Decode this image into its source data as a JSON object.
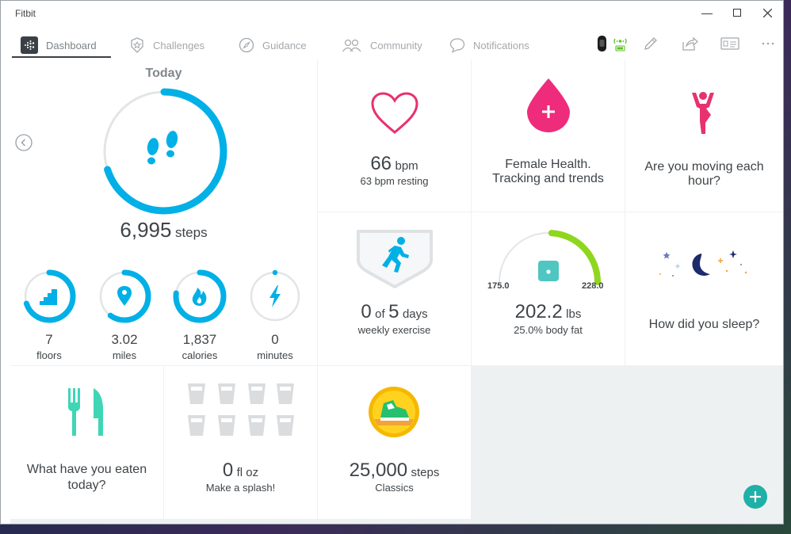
{
  "window": {
    "title": "Fitbit"
  },
  "nav": {
    "tabs": [
      {
        "label": "Dashboard",
        "icon": "fitbit-logo-icon",
        "active": true
      },
      {
        "label": "Challenges",
        "icon": "star-badge-icon"
      },
      {
        "label": "Guidance",
        "icon": "compass-icon"
      },
      {
        "label": "Community",
        "icon": "people-icon"
      },
      {
        "label": "Notifications",
        "icon": "speech-bubble-icon"
      }
    ],
    "right_icons": [
      "tracker-sync-icon",
      "pencil-icon",
      "share-icon",
      "profile-card-icon",
      "more-icon"
    ]
  },
  "today": {
    "title": "Today",
    "steps": "6,995",
    "steps_unit": "steps",
    "steps_progress": 0.7,
    "stats": [
      {
        "value": "7",
        "label": "floors",
        "icon": "stairs-icon",
        "progress": 0.7
      },
      {
        "value": "3.02",
        "label": "miles",
        "icon": "location-pin-icon",
        "progress": 0.6
      },
      {
        "value": "1,837",
        "label": "calories",
        "icon": "flame-icon",
        "progress": 0.77
      },
      {
        "value": "0",
        "label": "minutes",
        "icon": "lightning-icon",
        "progress": 0.0
      }
    ]
  },
  "heart": {
    "value": "66",
    "unit": "bpm",
    "sub": "63 bpm resting"
  },
  "female_health": {
    "caption": "Female Health. Tracking and trends"
  },
  "hourly": {
    "caption": "Are you moving each hour?"
  },
  "exercise": {
    "value": "0",
    "of": "of",
    "goal": "5",
    "unit": "days",
    "sub": "weekly exercise"
  },
  "weight": {
    "value": "202.2",
    "unit": "lbs",
    "sub": "25.0% body fat",
    "min": "175.0",
    "max": "228.0",
    "progress": 0.52
  },
  "sleep": {
    "caption": "How did you sleep?"
  },
  "food": {
    "caption": "What have you eaten today?"
  },
  "water": {
    "value": "0",
    "unit": "fl oz",
    "sub": "Make a splash!"
  },
  "badge": {
    "value": "25,000",
    "unit": "steps",
    "sub": "Classics"
  },
  "colors": {
    "accent": "#00b0e6",
    "heart": "#e8326f",
    "pink": "#ee2c7b",
    "teal": "#1fb0a8",
    "green": "#3fd6b6",
    "lime": "#8fd61e",
    "navy": "#1d2a6b"
  }
}
